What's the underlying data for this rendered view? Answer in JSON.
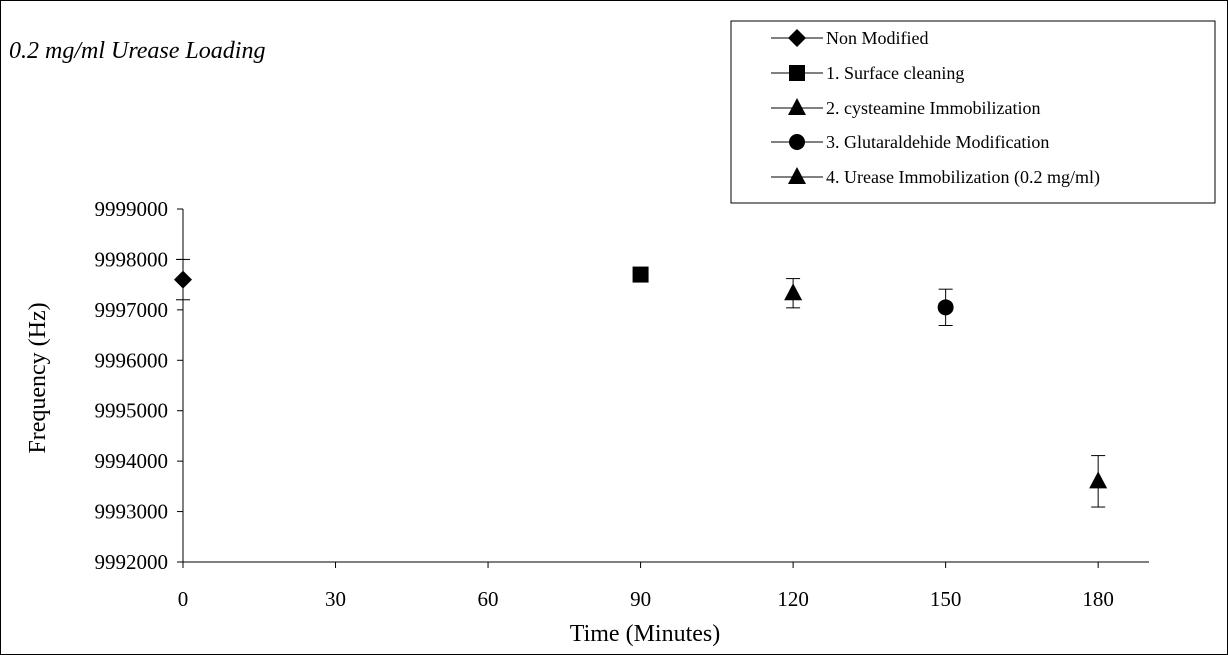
{
  "chart_data": {
    "type": "scatter",
    "title": "0.2 mg/ml Urease Loading",
    "xlabel": "Time (Minutes)",
    "ylabel": "Frequency (Hz)",
    "xlim": [
      0,
      190
    ],
    "ylim": [
      9992000,
      9999000
    ],
    "x_ticks": [
      "0",
      "30",
      "60",
      "90",
      "120",
      "150",
      "180"
    ],
    "y_ticks": [
      "9992000",
      "9993000",
      "9994000",
      "9995000",
      "9996000",
      "9997000",
      "9998000",
      "9999000"
    ],
    "legend_position": "top-right",
    "grid": false,
    "series": [
      {
        "name": "Non Modified",
        "marker": "diamond",
        "points": [
          {
            "x": 0,
            "y": 9997600,
            "err": 400
          }
        ]
      },
      {
        "name": "1. Surface cleaning",
        "marker": "square",
        "points": [
          {
            "x": 90,
            "y": 9997700,
            "err": 80
          }
        ]
      },
      {
        "name": "2. cysteamine Immobilization",
        "marker": "triangle",
        "points": [
          {
            "x": 120,
            "y": 9997330,
            "err": 290
          }
        ]
      },
      {
        "name": "3. Glutaraldehide Modification",
        "marker": "circle",
        "points": [
          {
            "x": 150,
            "y": 9997050,
            "err": 360
          }
        ]
      },
      {
        "name": "4. Urease Immobilization (0.2 mg/ml)",
        "marker": "triangle",
        "points": [
          {
            "x": 180,
            "y": 9993600,
            "err": 510
          }
        ]
      }
    ]
  }
}
